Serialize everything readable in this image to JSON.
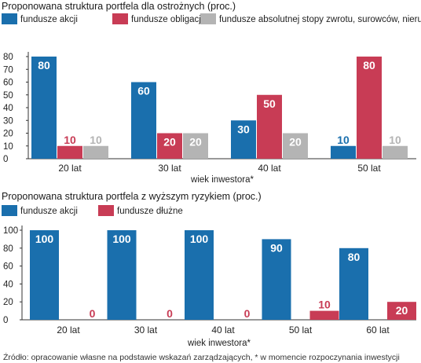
{
  "colors": {
    "blue": "#1a6fad",
    "red": "#c83c55",
    "gray": "#b4b4b4",
    "axis": "#333333"
  },
  "source": "Źródło: opracowanie własne na podstawie wskazań zarządzających, * w momencie rozpoczynania inwestycji",
  "chart_data": [
    {
      "type": "bar",
      "title": "Proponowana struktura portfela dla ostrożnych (proc.)",
      "xlabel": "wiek inwestora*",
      "ylabel": "",
      "ylim": [
        0,
        80
      ],
      "yticks": [
        0,
        10,
        20,
        30,
        40,
        50,
        60,
        70,
        80
      ],
      "grid": false,
      "legend_placement": "top",
      "categories": [
        "20 lat",
        "30 lat",
        "40 lat",
        "50 lat"
      ],
      "series": [
        {
          "name": "fundusze akcji",
          "color": "#1a6fad",
          "values": [
            80,
            60,
            30,
            10
          ]
        },
        {
          "name": "fundusze obligacji",
          "color": "#c83c55",
          "values": [
            10,
            20,
            50,
            80
          ]
        },
        {
          "name": "fundusze absolutnej stopy zwrotu, surowców, nieruchomości",
          "color": "#b4b4b4",
          "values": [
            10,
            20,
            20,
            10
          ]
        }
      ]
    },
    {
      "type": "bar",
      "title": "Proponowana struktura portfela z wyższym ryzykiem (proc.)",
      "xlabel": "wiek inwestora*",
      "ylabel": "",
      "ylim": [
        0,
        100
      ],
      "yticks": [
        0,
        20,
        40,
        60,
        80,
        100
      ],
      "grid": false,
      "legend_placement": "top",
      "categories": [
        "20 lat",
        "30 lat",
        "40 lat",
        "50 lat",
        "60 lat"
      ],
      "series": [
        {
          "name": "fundusze akcji",
          "color": "#1a6fad",
          "values": [
            100,
            100,
            100,
            90,
            80
          ]
        },
        {
          "name": "fundusze dłużne",
          "color": "#c83c55",
          "values": [
            0,
            0,
            0,
            10,
            20
          ]
        }
      ]
    }
  ]
}
